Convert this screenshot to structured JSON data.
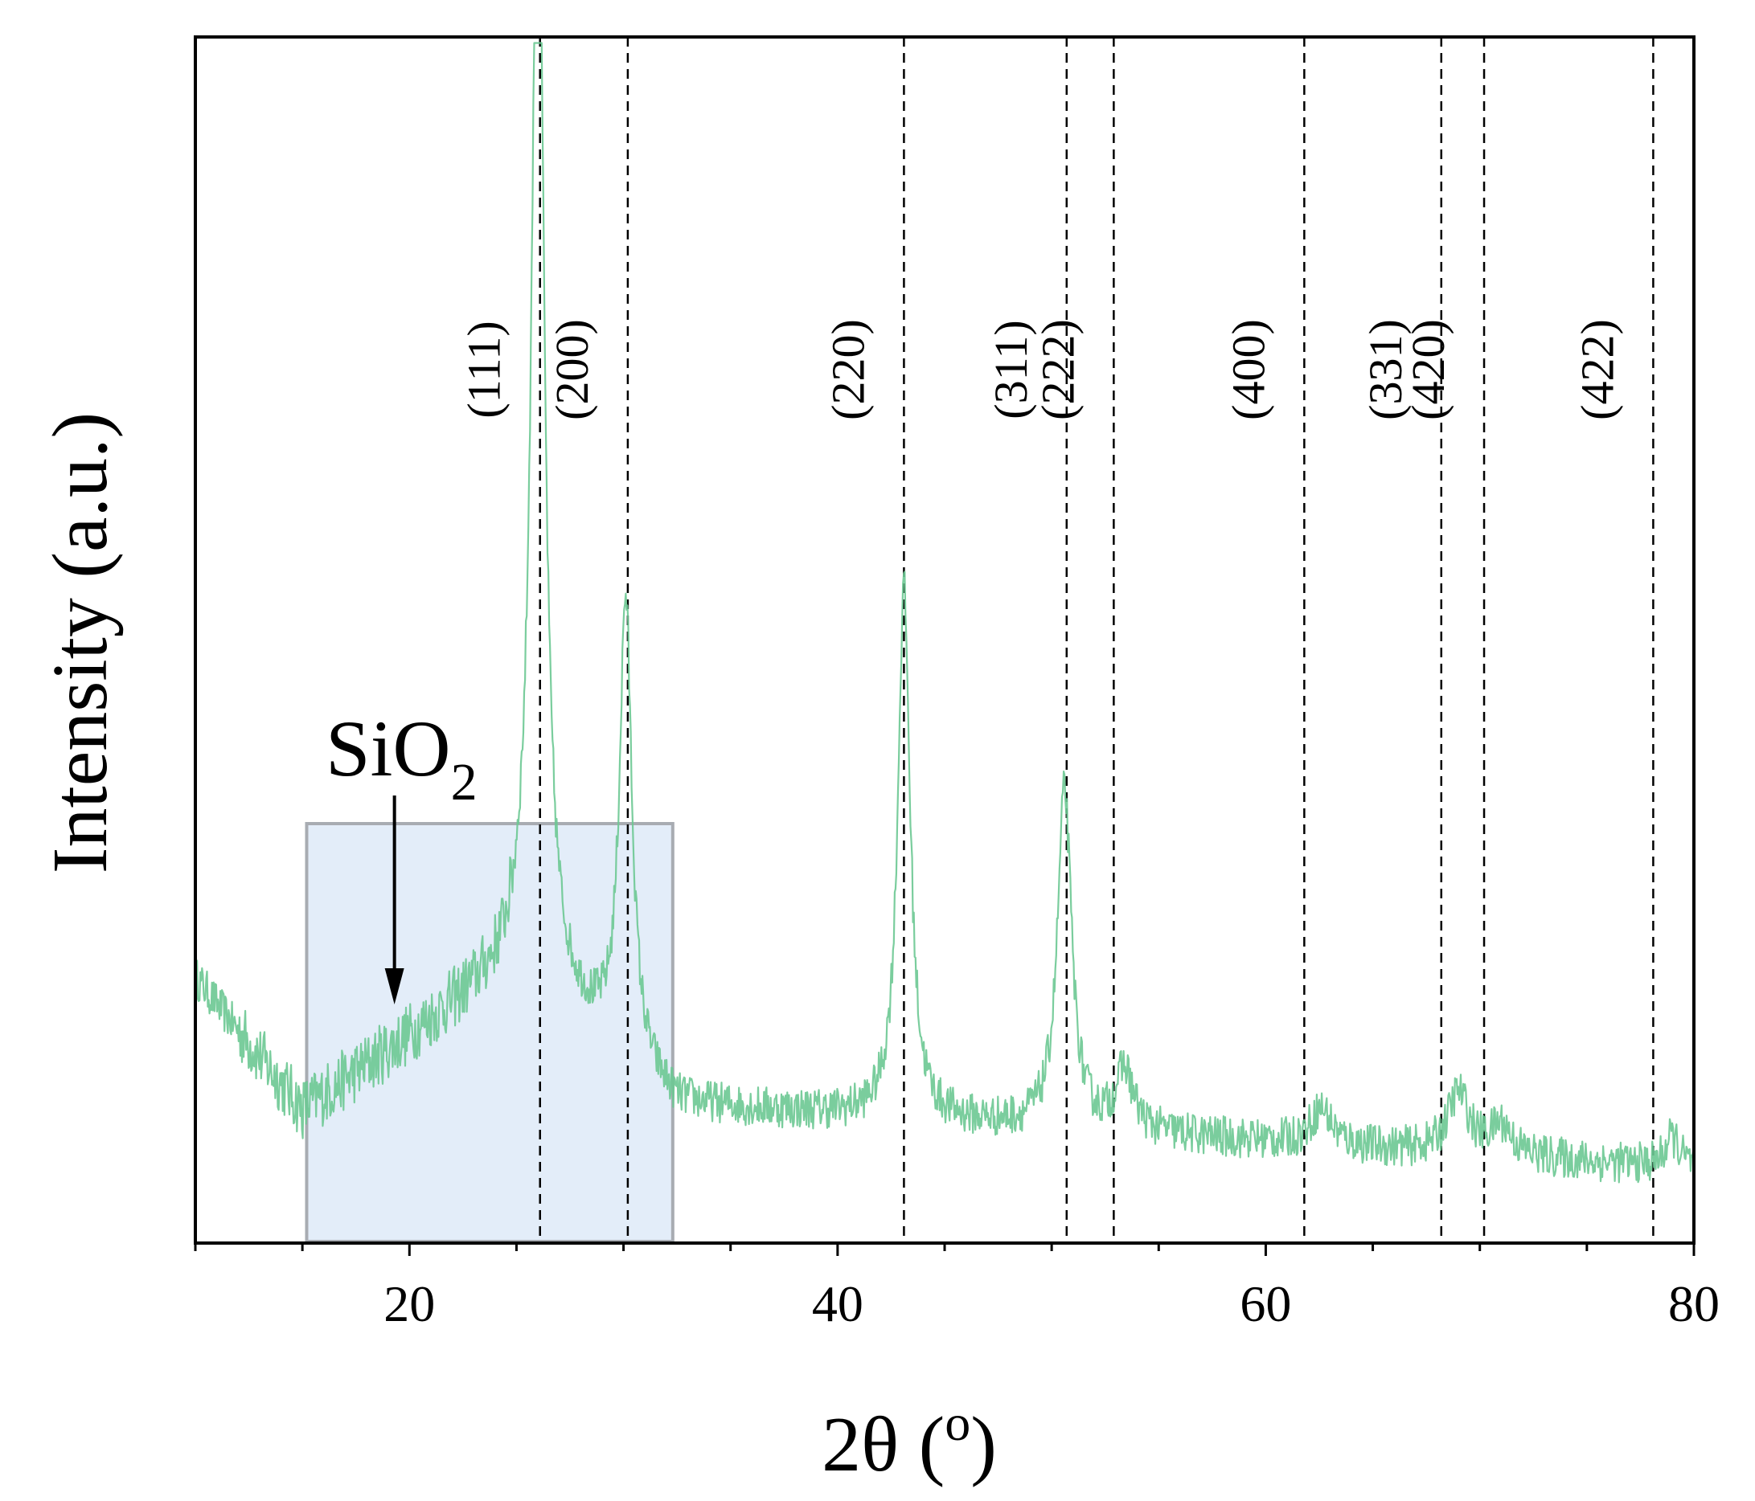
{
  "chart_data": {
    "type": "line",
    "title": "",
    "xlabel": "2θ (",
    "xlabel_unit": "o",
    "xlabel_close": ")",
    "ylabel": "Intensity (a.u.)",
    "xlim": [
      10,
      80
    ],
    "ylim": [
      0,
      100
    ],
    "xticks": [
      20,
      40,
      60,
      80
    ],
    "xtick_labels": [
      "20",
      "40",
      "60",
      "80"
    ],
    "grid": false,
    "y_tick_labels_shown": false,
    "series_color": "#6cc892",
    "peaks": [
      {
        "x": 26.0,
        "height": 98,
        "width": 0.35
      },
      {
        "x": 30.1,
        "height": 38,
        "width": 0.35
      },
      {
        "x": 43.1,
        "height": 44,
        "width": 0.35
      },
      {
        "x": 50.6,
        "height": 28,
        "width": 0.4
      },
      {
        "x": 53.4,
        "height": 5,
        "width": 0.5
      },
      {
        "x": 62.6,
        "height": 3,
        "width": 0.6
      },
      {
        "x": 69.0,
        "height": 5,
        "width": 0.6
      },
      {
        "x": 71.0,
        "height": 2.5,
        "width": 0.6
      },
      {
        "x": 79.0,
        "height": 2.5,
        "width": 0.4
      }
    ],
    "reference_lines": [
      {
        "x": 26.1,
        "label": "(111)"
      },
      {
        "x": 30.2,
        "label": "(200)"
      },
      {
        "x": 43.1,
        "label": "(220)"
      },
      {
        "x": 50.7,
        "label": "(311)"
      },
      {
        "x": 52.9,
        "label": "(222)"
      },
      {
        "x": 61.8,
        "label": "(400)"
      },
      {
        "x": 68.2,
        "label": "(331)"
      },
      {
        "x": 70.2,
        "label": "(420)"
      },
      {
        "x": 78.1,
        "label": "(422)"
      }
    ],
    "highlight_region": {
      "x": [
        15.2,
        32.3
      ],
      "fill": "#e3edf9",
      "stroke": "#a8acb2"
    },
    "annotation": {
      "text": "SiO",
      "subscript": "2",
      "arrow_to_x": 19.3
    }
  }
}
